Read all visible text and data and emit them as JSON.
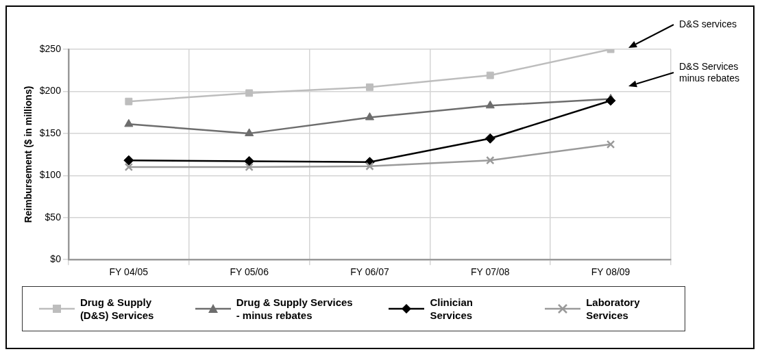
{
  "chart_data": {
    "type": "line",
    "ylabel": "Reimbursement ($ in millions)",
    "categories": [
      "FY 04/05",
      "FY 05/06",
      "FY 06/07",
      "FY 07/08",
      "FY 08/09"
    ],
    "series": [
      {
        "name": "Drug & Supply (D&S) Services",
        "color": "#bdbdbd",
        "marker": "square",
        "values": [
          188,
          198,
          205,
          219,
          250
        ]
      },
      {
        "name": "Drug & Supply Services - minus rebates",
        "color": "#6d6d6d",
        "marker": "triangle",
        "values": [
          161,
          150,
          169,
          183,
          191
        ]
      },
      {
        "name": "Clinician Services",
        "color": "#000000",
        "marker": "diamond",
        "values": [
          118,
          117,
          116,
          144,
          189
        ]
      },
      {
        "name": "Laboratory Services",
        "color": "#9a9a9a",
        "marker": "cross",
        "values": [
          110,
          110,
          111,
          118,
          137
        ]
      }
    ],
    "ylim": [
      0,
      250
    ],
    "yticks": [
      {
        "value": 0,
        "label": "$0"
      },
      {
        "value": 50,
        "label": "$50"
      },
      {
        "value": 100,
        "label": "$100"
      },
      {
        "value": 150,
        "label": "$150"
      },
      {
        "value": 200,
        "label": "$200"
      },
      {
        "value": 250,
        "label": "$250"
      }
    ],
    "annotations": [
      "D&S services",
      "D&S Services minus rebates"
    ],
    "grid": true,
    "legend": "bottom"
  }
}
